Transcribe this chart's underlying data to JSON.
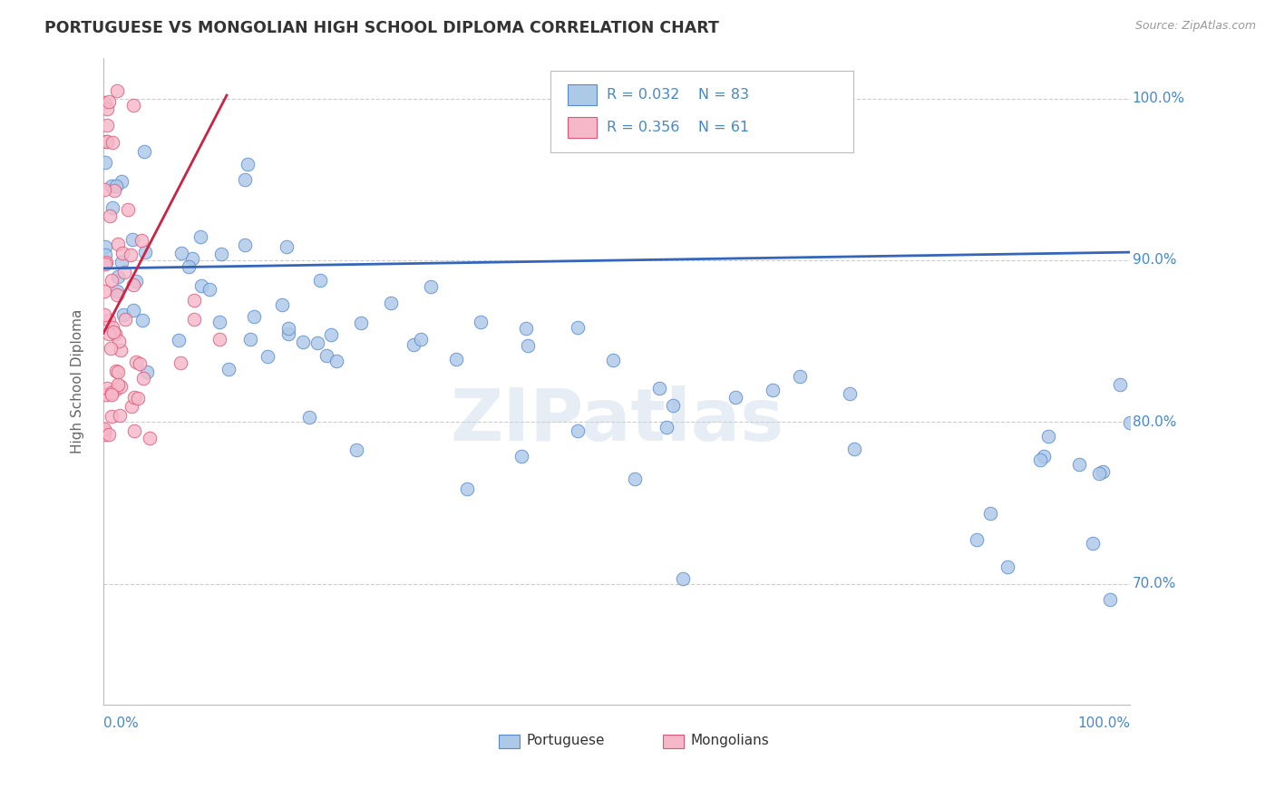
{
  "title": "PORTUGUESE VS MONGOLIAN HIGH SCHOOL DIPLOMA CORRELATION CHART",
  "source": "Source: ZipAtlas.com",
  "ylabel": "High School Diploma",
  "xlim": [
    0,
    1
  ],
  "ylim": [
    0.625,
    1.025
  ],
  "yticks": [
    0.7,
    0.8,
    0.9,
    1.0
  ],
  "ytick_labels": [
    "70.0%",
    "80.0%",
    "90.0%",
    "100.0%"
  ],
  "watermark": "ZIPatlas",
  "legend_r1": "R = 0.032",
  "legend_n1": "N = 83",
  "legend_r2": "R = 0.356",
  "legend_n2": "N = 61",
  "portuguese_color": "#adc9e8",
  "mongolian_color": "#f5b8c8",
  "portuguese_edge": "#5588cc",
  "mongolian_edge": "#dd5577",
  "trendline_blue": "#3366bb",
  "trendline_pink": "#cc2244",
  "background_color": "#ffffff",
  "grid_color": "#cccccc",
  "title_color": "#333333",
  "axis_label_color": "#666666",
  "tick_label_color": "#4488cc",
  "bottom_label_color": "#333333"
}
